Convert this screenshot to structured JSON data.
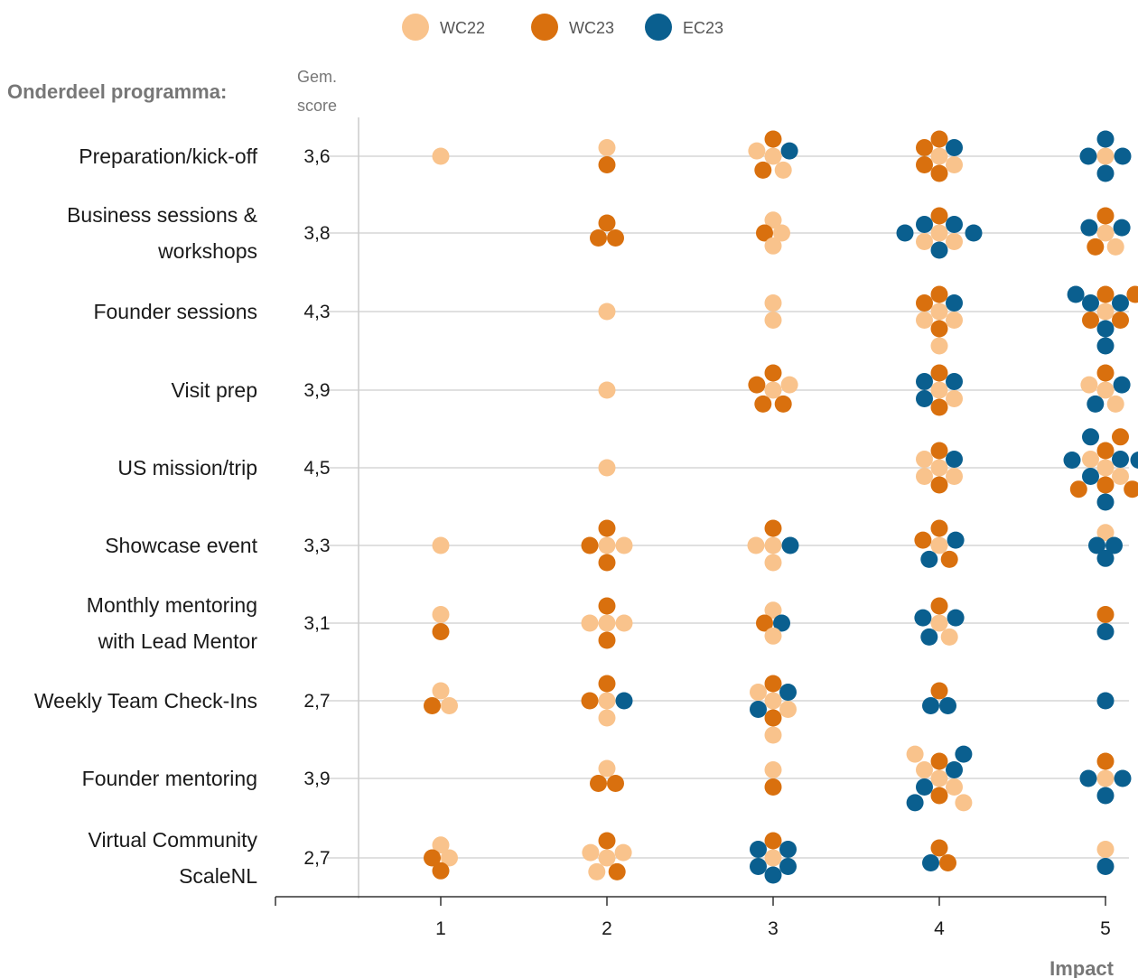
{
  "chart_data": {
    "type": "scatter",
    "header": {
      "category_title": "Onderdeel programma:",
      "score_title_line1": "Gem.",
      "score_title_line2": "score"
    },
    "xlabel": "Impact",
    "x_ticks": [
      "1",
      "2",
      "3",
      "4",
      "5"
    ],
    "xlim": [
      1,
      5
    ],
    "series": [
      {
        "name": "WC22",
        "color": "#F9C38C"
      },
      {
        "name": "WC23",
        "color": "#D9700E"
      },
      {
        "name": "EC23",
        "color": "#0A5F8F"
      }
    ],
    "categories": [
      {
        "label_lines": [
          "Preparation/kick-off"
        ],
        "score": "3,6",
        "counts": {
          "1": [
            1,
            0,
            0
          ],
          "2": [
            1,
            1,
            0
          ],
          "3": [
            3,
            2,
            1
          ],
          "4": [
            2,
            4,
            1
          ],
          "5": [
            1,
            0,
            4
          ]
        }
      },
      {
        "label_lines": [
          "Business sessions &",
          "workshops"
        ],
        "score": "3,8",
        "counts": {
          "1": [
            0,
            0,
            0
          ],
          "2": [
            0,
            3,
            0
          ],
          "3": [
            3,
            1,
            0
          ],
          "4": [
            3,
            1,
            5
          ],
          "5": [
            2,
            2,
            2
          ]
        }
      },
      {
        "label_lines": [
          "Founder sessions"
        ],
        "score": "4,3",
        "counts": {
          "1": [
            0,
            0,
            0
          ],
          "2": [
            1,
            0,
            0
          ],
          "3": [
            2,
            0,
            0
          ],
          "4": [
            4,
            3,
            1
          ],
          "5": [
            1,
            4,
            5
          ]
        }
      },
      {
        "label_lines": [
          "Visit prep"
        ],
        "score": "3,9",
        "counts": {
          "1": [
            0,
            0,
            0
          ],
          "2": [
            1,
            0,
            0
          ],
          "3": [
            2,
            4,
            0
          ],
          "4": [
            2,
            2,
            3
          ],
          "5": [
            3,
            1,
            2
          ]
        }
      },
      {
        "label_lines": [
          "US mission/trip"
        ],
        "score": "4,5",
        "counts": {
          "1": [
            0,
            0,
            0
          ],
          "2": [
            1,
            0,
            0
          ],
          "3": [
            0,
            0,
            0
          ],
          "4": [
            4,
            2,
            1
          ],
          "5": [
            3,
            5,
            6
          ]
        }
      },
      {
        "label_lines": [
          "Showcase event"
        ],
        "score": "3,3",
        "counts": {
          "1": [
            1,
            0,
            0
          ],
          "2": [
            2,
            3,
            0
          ],
          "3": [
            3,
            1,
            1
          ],
          "4": [
            1,
            3,
            2
          ],
          "5": [
            1,
            0,
            3
          ]
        }
      },
      {
        "label_lines": [
          "Monthly mentoring",
          "with Lead Mentor"
        ],
        "score": "3,1",
        "counts": {
          "1": [
            1,
            1,
            0
          ],
          "2": [
            3,
            2,
            0
          ],
          "3": [
            2,
            1,
            1
          ],
          "4": [
            2,
            1,
            3
          ],
          "5": [
            0,
            1,
            1
          ]
        }
      },
      {
        "label_lines": [
          "Weekly Team Check-Ins"
        ],
        "score": "2,7",
        "counts": {
          "1": [
            2,
            1,
            0
          ],
          "2": [
            2,
            2,
            1
          ],
          "3": [
            4,
            2,
            2
          ],
          "4": [
            0,
            1,
            2
          ],
          "5": [
            0,
            0,
            1
          ]
        }
      },
      {
        "label_lines": [
          "Founder mentoring"
        ],
        "score": "3,9",
        "counts": {
          "1": [
            0,
            0,
            0
          ],
          "2": [
            1,
            2,
            0
          ],
          "3": [
            1,
            1,
            0
          ],
          "4": [
            5,
            2,
            4
          ],
          "5": [
            1,
            1,
            3
          ]
        }
      },
      {
        "label_lines": [
          "Virtual Community",
          "ScaleNL"
        ],
        "score": "2,7",
        "counts": {
          "1": [
            2,
            2,
            0
          ],
          "2": [
            4,
            2,
            0
          ],
          "3": [
            1,
            1,
            5
          ],
          "4": [
            0,
            2,
            1
          ],
          "5": [
            1,
            0,
            1
          ]
        }
      }
    ]
  }
}
